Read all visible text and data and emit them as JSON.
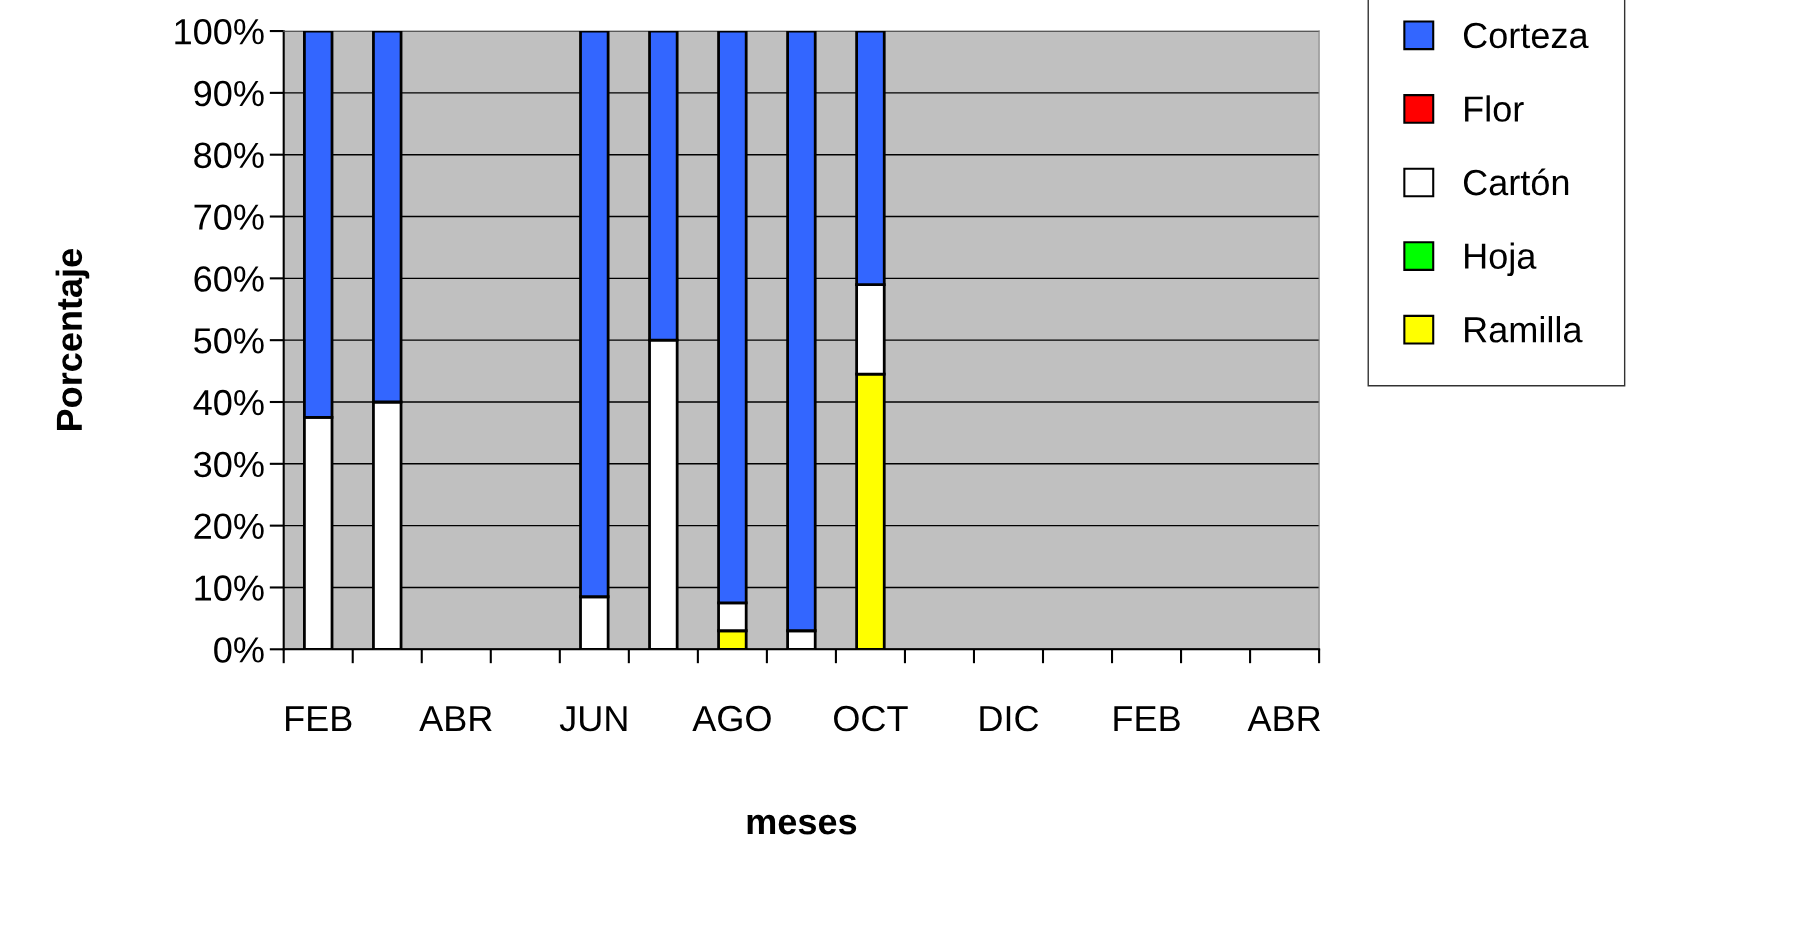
{
  "chart_data": {
    "type": "bar",
    "stacked": true,
    "xlabel": "meses",
    "ylabel": "Porcentaje",
    "categories": [
      "FEB",
      null,
      "ABR",
      null,
      "JUN",
      null,
      "AGO",
      null,
      "OCT",
      null,
      "DIC",
      null,
      "FEB",
      null,
      "ABR"
    ],
    "series": [
      {
        "name": "Ramilla",
        "color": "#ffff00",
        "values": [
          null,
          null,
          null,
          null,
          null,
          null,
          3,
          null,
          44.5,
          null,
          null,
          null,
          null,
          null,
          null
        ]
      },
      {
        "name": "Hoja",
        "color": "#00ff00",
        "values": [
          null,
          null,
          null,
          null,
          null,
          null,
          null,
          null,
          null,
          null,
          null,
          null,
          null,
          null,
          null
        ]
      },
      {
        "name": "Cartón",
        "color": "#ffffff",
        "values": [
          37.5,
          40,
          null,
          null,
          8.5,
          50,
          4.5,
          3,
          14.5,
          null,
          null,
          null,
          null,
          null,
          null
        ]
      },
      {
        "name": "Flor",
        "color": "#ff0000",
        "values": [
          null,
          null,
          null,
          null,
          null,
          null,
          null,
          null,
          null,
          null,
          null,
          null,
          null,
          null,
          null
        ]
      },
      {
        "name": "Corteza",
        "color": "#3366ff",
        "values": [
          62.5,
          60,
          null,
          null,
          91.5,
          50,
          92.5,
          97,
          41,
          null,
          null,
          null,
          null,
          null,
          null
        ]
      }
    ],
    "ylim": [
      0,
      100
    ],
    "yticks": [
      {
        "value": 0,
        "label": "0%"
      },
      {
        "value": 10,
        "label": "10%"
      },
      {
        "value": 20,
        "label": "20%"
      },
      {
        "value": 30,
        "label": "30%"
      },
      {
        "value": 40,
        "label": "40%"
      },
      {
        "value": 50,
        "label": "50%"
      },
      {
        "value": 60,
        "label": "60%"
      },
      {
        "value": 70,
        "label": "70%"
      },
      {
        "value": 80,
        "label": "80%"
      },
      {
        "value": 90,
        "label": "90%"
      },
      {
        "value": 100,
        "label": "100%"
      }
    ],
    "grid": "y",
    "legend": "right"
  }
}
